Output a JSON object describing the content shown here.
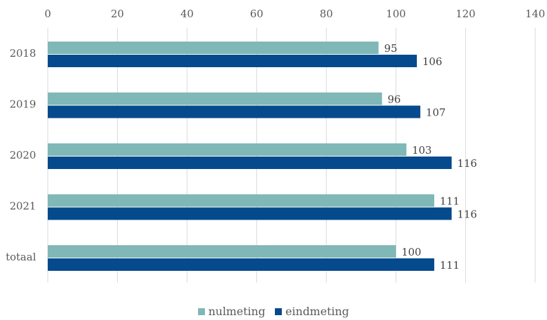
{
  "chart_data": {
    "type": "bar",
    "orientation": "horizontal",
    "categories": [
      "2018",
      "2019",
      "2020",
      "2021",
      "totaal"
    ],
    "series": [
      {
        "name": "nulmeting",
        "values": [
          95,
          96,
          103,
          111,
          100
        ],
        "color": "#7fb8b6"
      },
      {
        "name": "eindmeting",
        "values": [
          106,
          107,
          116,
          116,
          111
        ],
        "color": "#054a8c"
      }
    ],
    "xlim": [
      0,
      140
    ],
    "xticks": [
      "0",
      "20",
      "40",
      "60",
      "80",
      "100",
      "120",
      "140"
    ],
    "x_axis_position": "top",
    "grid": true,
    "legend_position": "bottom"
  }
}
